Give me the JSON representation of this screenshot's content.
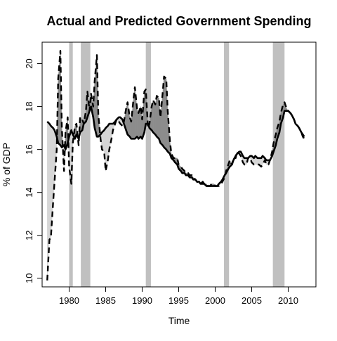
{
  "chart_data": {
    "type": "line",
    "title": "Actual and Predicted Government Spending",
    "xlabel": "Time",
    "ylabel": "% of GDP",
    "xlim": [
      1976.3,
      2013.8
    ],
    "ylim": [
      9.6,
      21.0
    ],
    "x_ticks": [
      1980,
      1985,
      1990,
      1995,
      2000,
      2005,
      2010
    ],
    "y_ticks": [
      10,
      12,
      14,
      16,
      18,
      20
    ],
    "recession_bands": [
      [
        1980.0,
        1980.5
      ],
      [
        1981.6,
        1982.9
      ],
      [
        1990.5,
        1991.2
      ],
      [
        2001.2,
        2001.9
      ],
      [
        2007.9,
        2009.5
      ]
    ],
    "colors": {
      "recession": "#c0c0c0",
      "fill_actual_above": "#d6d6d6",
      "fill_predicted_above": "#8c8c8c",
      "actual_line": "#000000",
      "predicted_line": "#000000"
    },
    "series": [
      {
        "style": "solid",
        "x": [
          1977.0,
          1977.3,
          1977.5,
          1977.8,
          1978.0,
          1978.3,
          1978.5,
          1978.8,
          1979.0,
          1979.3,
          1979.5,
          1979.8,
          1980.0,
          1980.3,
          1980.5,
          1980.8,
          1981.0,
          1981.3,
          1981.5,
          1981.8,
          1982.0,
          1982.3,
          1982.5,
          1982.8,
          1983.0,
          1983.3,
          1983.5,
          1983.8,
          1984.0,
          1984.3,
          1984.5,
          1984.8,
          1985.0,
          1985.3,
          1985.5,
          1985.8,
          1986.0,
          1986.3,
          1986.5,
          1986.8,
          1987.0,
          1987.3,
          1987.5,
          1987.8,
          1988.0,
          1988.3,
          1988.5,
          1988.8,
          1989.0,
          1989.3,
          1989.5,
          1989.8,
          1990.0,
          1990.3,
          1990.5,
          1990.8,
          1991.0,
          1991.3,
          1991.5,
          1991.8,
          1992.0,
          1992.3,
          1992.5,
          1992.8,
          1993.0,
          1993.3,
          1993.5,
          1993.8,
          1994.0,
          1994.3,
          1994.5,
          1994.8,
          1995.0,
          1995.3,
          1995.5,
          1995.8,
          1996.0,
          1996.3,
          1996.5,
          1996.8,
          1997.0,
          1997.3,
          1997.5,
          1997.8,
          1998.0,
          1998.3,
          1998.5,
          1998.8,
          1999.0,
          1999.3,
          1999.5,
          1999.8,
          2000.0,
          2000.3,
          2000.5,
          2000.8,
          2001.0,
          2001.3,
          2001.5,
          2001.8,
          2002.0,
          2002.3,
          2002.5,
          2002.8,
          2003.0,
          2003.3,
          2003.5,
          2003.8,
          2004.0,
          2004.3,
          2004.5,
          2004.8,
          2005.0,
          2005.3,
          2005.5,
          2005.8,
          2006.0,
          2006.3,
          2006.5,
          2006.8,
          2007.0,
          2007.3,
          2007.5,
          2007.8,
          2008.0,
          2008.3,
          2008.5,
          2008.8,
          2009.0,
          2009.3,
          2009.5,
          2009.8,
          2010.0,
          2010.3,
          2010.5,
          2010.8,
          2011.0,
          2011.3,
          2011.5,
          2011.8,
          2012.0,
          2012.2
        ],
        "y": [
          17.3,
          17.2,
          17.1,
          17.0,
          16.9,
          16.6,
          16.3,
          16.2,
          16.1,
          16.2,
          16.0,
          16.3,
          16.6,
          16.9,
          16.7,
          16.5,
          16.7,
          16.5,
          16.8,
          16.9,
          17.2,
          17.3,
          17.5,
          17.8,
          18.0,
          17.5,
          17.0,
          16.6,
          16.6,
          16.7,
          16.8,
          16.9,
          17.0,
          17.1,
          17.2,
          17.2,
          17.2,
          17.3,
          17.4,
          17.5,
          17.5,
          17.4,
          17.2,
          16.9,
          16.7,
          16.6,
          16.5,
          16.5,
          16.5,
          16.6,
          16.5,
          16.6,
          16.5,
          16.8,
          17.2,
          17.2,
          17.0,
          16.9,
          16.8,
          16.7,
          16.6,
          16.5,
          16.3,
          16.2,
          16.1,
          16.0,
          15.9,
          15.8,
          15.6,
          15.5,
          15.4,
          15.3,
          15.1,
          15.0,
          14.9,
          14.9,
          14.8,
          14.8,
          14.7,
          14.7,
          14.6,
          14.6,
          14.5,
          14.5,
          14.4,
          14.4,
          14.4,
          14.3,
          14.3,
          14.3,
          14.3,
          14.3,
          14.3,
          14.3,
          14.4,
          14.5,
          14.6,
          14.8,
          14.9,
          15.1,
          15.2,
          15.3,
          15.5,
          15.7,
          15.8,
          15.9,
          15.9,
          15.7,
          15.6,
          15.6,
          15.6,
          15.7,
          15.7,
          15.6,
          15.7,
          15.6,
          15.6,
          15.6,
          15.7,
          15.6,
          15.5,
          15.5,
          15.5,
          15.7,
          15.9,
          16.2,
          16.5,
          16.8,
          17.2,
          17.5,
          17.8,
          17.8,
          17.8,
          17.7,
          17.6,
          17.4,
          17.2,
          17.1,
          17.0,
          16.8,
          16.7,
          16.6
        ]
      },
      {
        "style": "dashed",
        "x": [
          1977.0,
          1977.3,
          1977.5,
          1977.8,
          1978.0,
          1978.3,
          1978.5,
          1978.8,
          1979.0,
          1979.3,
          1979.5,
          1979.8,
          1980.0,
          1980.3,
          1980.5,
          1980.8,
          1981.0,
          1981.3,
          1981.5,
          1981.8,
          1982.0,
          1982.3,
          1982.5,
          1982.8,
          1983.0,
          1983.3,
          1983.5,
          1983.8,
          1984.0,
          1984.3,
          1984.5,
          1984.8,
          1985.0,
          1985.3,
          1985.5,
          1985.8,
          1986.0,
          1986.3,
          1986.5,
          1986.8,
          1987.0,
          1987.3,
          1987.5,
          1987.8,
          1988.0,
          1988.3,
          1988.5,
          1988.8,
          1989.0,
          1989.3,
          1989.5,
          1989.8,
          1990.0,
          1990.3,
          1990.5,
          1990.8,
          1991.0,
          1991.3,
          1991.5,
          1991.8,
          1992.0,
          1992.3,
          1992.5,
          1992.8,
          1993.0,
          1993.3,
          1993.5,
          1993.8,
          1994.0,
          1994.3,
          1994.5,
          1994.8,
          1995.0,
          1995.3,
          1995.5,
          1995.8,
          1996.0,
          1996.3,
          1996.5,
          1996.8,
          1997.0,
          1997.3,
          1997.5,
          1997.8,
          1998.0,
          1998.3,
          1998.5,
          1998.8,
          1999.0,
          1999.3,
          1999.5,
          1999.8,
          2000.0,
          2000.3,
          2000.5,
          2000.8,
          2001.0,
          2001.3,
          2001.5,
          2001.8,
          2002.0,
          2002.3,
          2002.5,
          2002.8,
          2003.0,
          2003.3,
          2003.5,
          2003.8,
          2004.0,
          2004.3,
          2004.5,
          2004.8,
          2005.0,
          2005.3,
          2005.5,
          2005.8,
          2006.0,
          2006.3,
          2006.5,
          2006.8,
          2007.0,
          2007.3,
          2007.5,
          2007.8,
          2008.0,
          2008.3,
          2008.5,
          2008.8,
          2009.0,
          2009.3,
          2009.5,
          2009.8,
          2010.0,
          2010.3,
          2010.5,
          2010.8,
          2011.0,
          2011.3,
          2011.5,
          2011.8,
          2012.0,
          2012.2
        ],
        "y": [
          9.9,
          11.8,
          11.9,
          13.5,
          14.5,
          16.0,
          19.3,
          20.6,
          17.0,
          15.0,
          16.8,
          17.5,
          15.2,
          14.4,
          16.3,
          17.1,
          17.2,
          16.2,
          17.5,
          17.4,
          17.2,
          17.8,
          18.7,
          17.8,
          18.6,
          18.0,
          19.2,
          20.4,
          17.6,
          16.5,
          16.0,
          15.9,
          15.0,
          15.5,
          16.0,
          16.5,
          16.9,
          17.2,
          17.4,
          17.3,
          17.2,
          17.1,
          17.3,
          17.9,
          18.2,
          17.5,
          17.3,
          18.3,
          18.9,
          17.9,
          17.7,
          18.0,
          17.4,
          18.7,
          18.8,
          17.0,
          17.2,
          18.0,
          18.3,
          18.1,
          18.5,
          18.4,
          17.5,
          18.6,
          19.4,
          19.3,
          17.8,
          16.4,
          15.8,
          15.6,
          15.6,
          15.6,
          15.3,
          15.2,
          15.1,
          15.0,
          14.9,
          14.9,
          14.8,
          14.8,
          14.7,
          14.6,
          14.5,
          14.4,
          14.4,
          14.5,
          14.4,
          14.4,
          14.3,
          14.3,
          14.4,
          14.4,
          14.3,
          14.3,
          14.3,
          14.4,
          14.5,
          14.7,
          15.0,
          15.3,
          15.5,
          15.3,
          15.6,
          15.6,
          15.9,
          15.8,
          15.7,
          15.4,
          15.3,
          15.3,
          15.6,
          15.6,
          15.4,
          15.3,
          15.3,
          15.3,
          15.3,
          15.2,
          15.3,
          15.5,
          15.3,
          15.3,
          15.5,
          15.9,
          16.3,
          16.7,
          17.0,
          17.3,
          17.7,
          18.1,
          18.2,
          17.9,
          17.8,
          17.7,
          17.6,
          17.4,
          17.2,
          17.1,
          17.0,
          16.8,
          16.6,
          16.5
        ]
      }
    ]
  }
}
